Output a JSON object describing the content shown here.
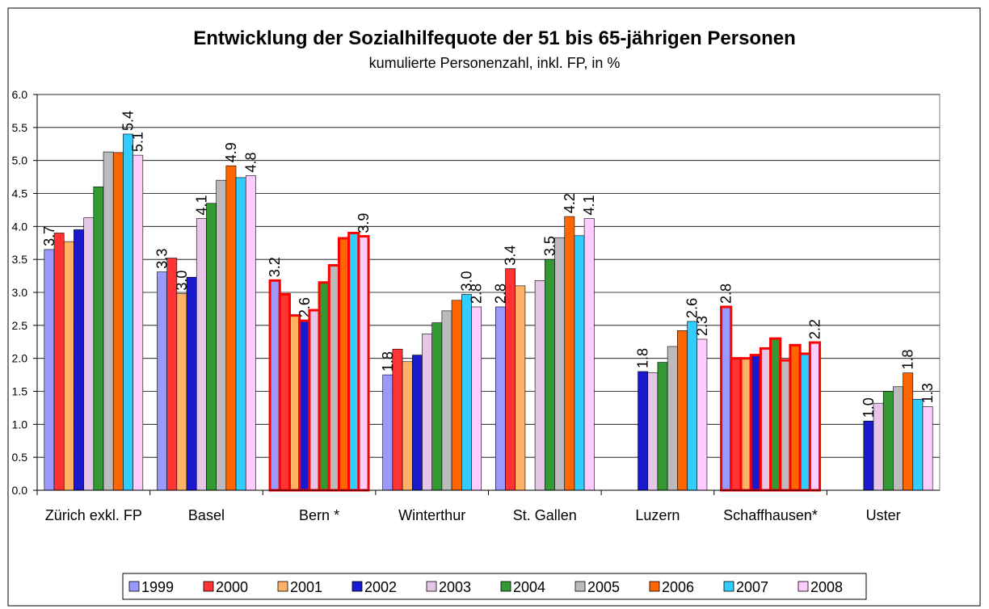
{
  "chart_data": {
    "type": "bar",
    "title": "Entwicklung der Sozialhilfequote der 51 bis 65-jährigen Personen",
    "subtitle": "kumulierte Personenzahl, inkl. FP, in %",
    "categories": [
      "Zürich exkl. FP",
      "Basel",
      "Bern *",
      "Winterthur",
      "St. Gallen",
      "Luzern",
      "Schaffhausen*",
      "Uster"
    ],
    "outlined_category_indices": [
      2,
      6
    ],
    "outline_color": "#ff0000",
    "series": [
      {
        "name": "1999",
        "color": "#9999ff",
        "values": [
          3.65,
          3.31,
          3.18,
          1.75,
          2.78,
          null,
          2.78,
          null
        ],
        "value_labels": [
          "3.7",
          "3.3",
          "3.2",
          "1.8",
          "2.8",
          null,
          "2.8",
          null
        ]
      },
      {
        "name": "2000",
        "color": "#ff3333",
        "values": [
          3.9,
          3.52,
          2.97,
          2.14,
          3.36,
          null,
          2.0,
          null
        ],
        "value_labels": [
          null,
          null,
          null,
          null,
          "3.4",
          null,
          null,
          null
        ]
      },
      {
        "name": "2001",
        "color": "#ffb266",
        "values": [
          3.77,
          2.98,
          2.65,
          1.95,
          3.1,
          null,
          2.0,
          null
        ],
        "value_labels": [
          null,
          "3.0",
          null,
          null,
          null,
          null,
          null,
          null
        ]
      },
      {
        "name": "2002",
        "color": "#1a1acc",
        "values": [
          3.95,
          3.23,
          2.57,
          2.05,
          null,
          1.8,
          2.05,
          1.05
        ],
        "value_labels": [
          null,
          null,
          "2.6",
          null,
          null,
          "1.8",
          null,
          "1.0"
        ]
      },
      {
        "name": "2003",
        "color": "#e6c6e6",
        "values": [
          4.13,
          4.12,
          2.73,
          2.37,
          3.18,
          1.78,
          2.15,
          1.32
        ],
        "value_labels": [
          null,
          "4.1",
          null,
          null,
          null,
          null,
          null,
          null
        ]
      },
      {
        "name": "2004",
        "color": "#339933",
        "values": [
          4.6,
          4.35,
          3.15,
          2.54,
          3.5,
          1.94,
          2.3,
          1.5
        ],
        "value_labels": [
          null,
          null,
          null,
          null,
          "3.5",
          null,
          null,
          null
        ]
      },
      {
        "name": "2005",
        "color": "#bbbbbb",
        "values": [
          5.13,
          4.7,
          3.41,
          2.72,
          3.83,
          2.18,
          1.97,
          1.57
        ],
        "value_labels": [
          null,
          null,
          null,
          null,
          null,
          null,
          null,
          null
        ]
      },
      {
        "name": "2006",
        "color": "#ff6600",
        "values": [
          5.12,
          4.92,
          3.82,
          2.88,
          4.15,
          2.42,
          2.2,
          1.78
        ],
        "value_labels": [
          null,
          "4.9",
          null,
          null,
          "4.2",
          null,
          null,
          "1.8"
        ]
      },
      {
        "name": "2007",
        "color": "#33ccff",
        "values": [
          5.4,
          4.74,
          3.9,
          2.97,
          3.86,
          2.56,
          2.07,
          1.38
        ],
        "value_labels": [
          "5.4",
          null,
          null,
          "3.0",
          null,
          "2.6",
          null,
          null
        ]
      },
      {
        "name": "2008",
        "color": "#ffccff",
        "values": [
          5.08,
          4.77,
          3.85,
          2.78,
          4.12,
          2.29,
          2.24,
          1.27
        ],
        "value_labels": [
          "5.1",
          "4.8",
          "3.9",
          "2.8",
          "4.1",
          "2.3",
          "2.2",
          "1.3"
        ]
      }
    ],
    "ylim": [
      0,
      6
    ],
    "yticks": [
      {
        "value": 0,
        "label": "0.0"
      },
      {
        "value": 0.5,
        "label": "0.5"
      },
      {
        "value": 1,
        "label": "1.0"
      },
      {
        "value": 1.5,
        "label": "1.5"
      },
      {
        "value": 2,
        "label": "2.0"
      },
      {
        "value": 2.5,
        "label": "2.5"
      },
      {
        "value": 3,
        "label": "3.0"
      },
      {
        "value": 3.5,
        "label": "3.5"
      },
      {
        "value": 4,
        "label": "4.0"
      },
      {
        "value": 4.5,
        "label": "4.5"
      },
      {
        "value": 5,
        "label": "5.0"
      },
      {
        "value": 5.5,
        "label": "5.5"
      },
      {
        "value": 6,
        "label": "6.0"
      }
    ],
    "grid": true,
    "legend": "bottom"
  }
}
